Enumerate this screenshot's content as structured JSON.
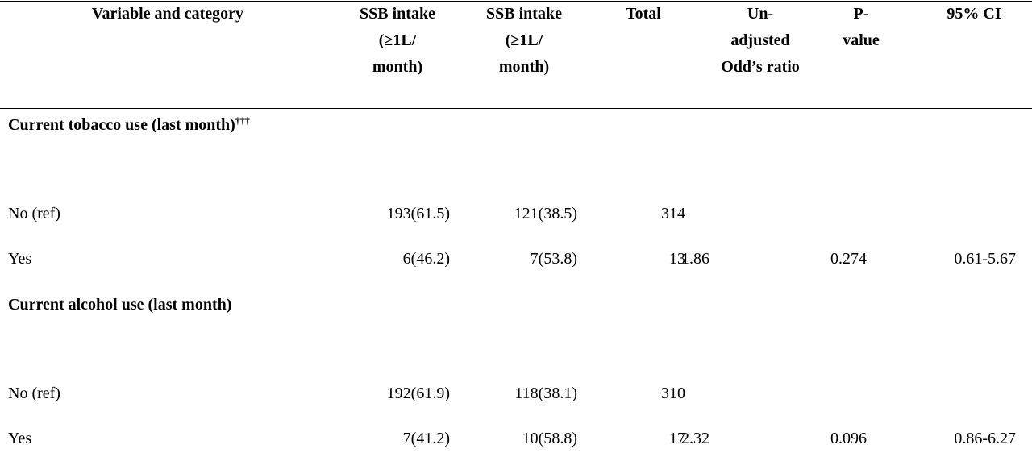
{
  "table": {
    "header": [
      [
        "Variable and category"
      ],
      [
        "SSB intake",
        "(≥1L/",
        "month)"
      ],
      [
        "SSB intake",
        "(≥1L/",
        "month)"
      ],
      [
        "Total"
      ],
      [
        "Un-",
        "adjusted",
        "Odd’s ratio"
      ],
      [
        "P-",
        "value"
      ],
      [
        "95% CI"
      ]
    ],
    "sections": [
      {
        "title": "Current tobacco use (last month)",
        "superscript": "†††",
        "rows": [
          [
            "No (ref)",
            "193(61.5)",
            "121(38.5)",
            "314"
          ],
          [
            "Yes",
            "6(46.2)",
            "7(53.8)",
            "13",
            "1.86",
            "0.274",
            "0.61-5.67"
          ]
        ]
      },
      {
        "title": "Current alcohol use (last month)",
        "rows": [
          [
            "No (ref)",
            "192(61.9)",
            "118(38.1)",
            "310"
          ],
          [
            "Yes",
            "7(41.2)",
            "10(58.8)",
            "17",
            "2.32",
            "0.096",
            "0.86-6.27"
          ]
        ]
      }
    ]
  }
}
